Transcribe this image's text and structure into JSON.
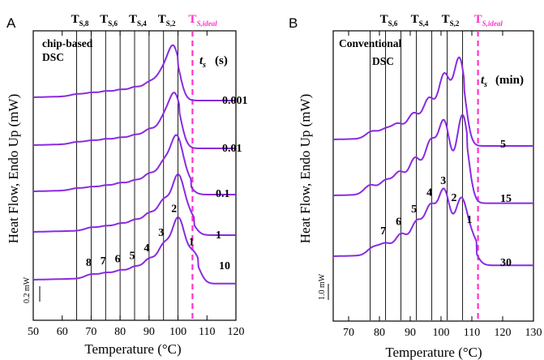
{
  "colors": {
    "curve": "#8a2be2",
    "ideal": "#ff33cc",
    "axis": "#000000",
    "ref_line": "#000000"
  },
  "chart_data": [
    {
      "panel_label": "A",
      "type": "line",
      "box_title": "chip-based\nDSC",
      "xlabel": "Temperature (°C)",
      "ylabel": "Heat Flow, Endo Up (mW)",
      "xlim": [
        50,
        120
      ],
      "x_ticks": [
        50,
        60,
        70,
        80,
        90,
        100,
        110,
        120
      ],
      "x_tick_labels": [
        "50",
        "60",
        "70",
        "80",
        "90",
        "100",
        "110",
        "120"
      ],
      "time_header": "t",
      "time_header_sub": "s",
      "time_unit": "(s)",
      "scale_bar": "0.2 mW",
      "ref_lines": [
        {
          "x": 65,
          "label": "T",
          "sub": "S,8"
        },
        {
          "x": 70,
          "label": "",
          "sub": ""
        },
        {
          "x": 75,
          "label": "T",
          "sub": "S,6"
        },
        {
          "x": 80,
          "label": "",
          "sub": ""
        },
        {
          "x": 85,
          "label": "T",
          "sub": "S,4"
        },
        {
          "x": 90,
          "label": "",
          "sub": ""
        },
        {
          "x": 95,
          "label": "T",
          "sub": "S,2"
        },
        {
          "x": 100,
          "label": "",
          "sub": ""
        }
      ],
      "ideal_line": {
        "x": 105,
        "label": "T",
        "sub": "S,ideal"
      },
      "series": [
        {
          "name": "0.001",
          "baseline_y": 0.0,
          "peaks": [
            [
              65,
              0.02
            ],
            [
              70,
              0.03
            ],
            [
              75,
              0.04
            ],
            [
              80,
              0.05
            ],
            [
              85,
              0.07
            ],
            [
              90,
              0.11
            ],
            [
              94.5,
              0.19
            ],
            [
              98.5,
              0.46
            ]
          ]
        },
        {
          "name": "0.01",
          "baseline_y": 0.0,
          "peaks": [
            [
              65,
              0.02
            ],
            [
              70,
              0.03
            ],
            [
              75,
              0.04
            ],
            [
              80,
              0.05
            ],
            [
              85,
              0.07
            ],
            [
              90,
              0.12
            ],
            [
              95,
              0.21
            ],
            [
              99,
              0.46
            ]
          ]
        },
        {
          "name": "0.1",
          "baseline_y": 0.0,
          "peaks": [
            [
              65,
              0.02
            ],
            [
              70,
              0.03
            ],
            [
              75,
              0.04
            ],
            [
              80,
              0.06
            ],
            [
              85,
              0.08
            ],
            [
              90,
              0.14
            ],
            [
              95,
              0.24
            ],
            [
              99.5,
              0.5
            ],
            [
              103,
              0.07
            ]
          ]
        },
        {
          "name": "1",
          "baseline_y": 0.0,
          "peaks": [
            [
              70,
              0.03
            ],
            [
              75,
              0.04
            ],
            [
              80,
              0.06
            ],
            [
              85,
              0.09
            ],
            [
              90,
              0.15
            ],
            [
              95,
              0.27
            ],
            [
              100,
              0.52
            ],
            [
              104,
              0.12
            ]
          ]
        },
        {
          "name": "10",
          "baseline_y": 0.0,
          "peaks": [
            [
              70,
              0.04
            ],
            [
              75,
              0.05
            ],
            [
              80,
              0.07
            ],
            [
              85,
              0.1
            ],
            [
              90,
              0.17
            ],
            [
              95,
              0.3
            ],
            [
              99.5,
              0.36
            ],
            [
              101,
              0.26
            ],
            [
              105.5,
              0.22
            ]
          ]
        }
      ],
      "peak_labels": [
        {
          "text": "8",
          "x": 70,
          "curve": 4
        },
        {
          "text": "7",
          "x": 75,
          "curve": 4
        },
        {
          "text": "6",
          "x": 80,
          "curve": 4
        },
        {
          "text": "5",
          "x": 85,
          "curve": 4
        },
        {
          "text": "4",
          "x": 90,
          "curve": 4
        },
        {
          "text": "3",
          "x": 95,
          "curve": 4
        },
        {
          "text": "2",
          "x": 99.5,
          "curve": 4
        },
        {
          "text": "1",
          "x": 105.5,
          "curve": 4
        }
      ]
    },
    {
      "panel_label": "B",
      "type": "line",
      "box_title": "Conventional\nDSC",
      "xlabel": "Temperature (°C)",
      "ylabel": "Heat Flow, Endo Up (mW)",
      "xlim": [
        65,
        130
      ],
      "x_ticks": [
        70,
        80,
        90,
        100,
        110,
        120,
        130
      ],
      "x_tick_labels": [
        "70",
        "80",
        "90",
        "100",
        "110",
        "120",
        "130"
      ],
      "time_header": "t",
      "time_header_sub": "s",
      "time_unit": "(min)",
      "scale_bar": "1.0 mW",
      "ref_lines": [
        {
          "x": 77,
          "label": "",
          "sub": ""
        },
        {
          "x": 82,
          "label": "T",
          "sub": "S,6"
        },
        {
          "x": 87,
          "label": "",
          "sub": ""
        },
        {
          "x": 92,
          "label": "T",
          "sub": "S,4"
        },
        {
          "x": 97,
          "label": "",
          "sub": ""
        },
        {
          "x": 102,
          "label": "T",
          "sub": "S,2"
        },
        {
          "x": 107,
          "label": "",
          "sub": ""
        }
      ],
      "ideal_line": {
        "x": 112,
        "label": "T",
        "sub": "S,ideal"
      },
      "series": [
        {
          "name": "5",
          "baseline_y": 0.0,
          "peaks": [
            [
              77.5,
              0.09
            ],
            [
              82,
              0.11
            ],
            [
              86,
              0.17
            ],
            [
              91,
              0.3
            ],
            [
              96,
              0.48
            ],
            [
              101,
              0.78
            ],
            [
              106,
              1.0
            ]
          ]
        },
        {
          "name": "15",
          "baseline_y": 0.0,
          "peaks": [
            [
              77,
              0.12
            ],
            [
              82,
              0.17
            ],
            [
              86.5,
              0.27
            ],
            [
              91.5,
              0.44
            ],
            [
              96.5,
              0.63
            ],
            [
              101,
              0.9
            ],
            [
              107,
              1.0
            ]
          ]
        },
        {
          "name": "30",
          "baseline_y": 0.0,
          "peaks": [
            [
              78,
              0.1
            ],
            [
              82,
              0.14
            ],
            [
              87,
              0.26
            ],
            [
              92,
              0.4
            ],
            [
              96.5,
              0.58
            ],
            [
              101,
              0.8
            ],
            [
              106.5,
              0.68
            ],
            [
              110,
              0.18
            ]
          ]
        }
      ],
      "peak_labels": [
        {
          "text": "7",
          "x": 82,
          "curve": 2
        },
        {
          "text": "6",
          "x": 87,
          "curve": 2
        },
        {
          "text": "5",
          "x": 92,
          "curve": 2
        },
        {
          "text": "4",
          "x": 97,
          "curve": 2
        },
        {
          "text": "3",
          "x": 101.5,
          "curve": 2
        },
        {
          "text": "2",
          "x": 105,
          "curve": 2
        },
        {
          "text": "1",
          "x": 110,
          "curve": 2
        }
      ]
    }
  ]
}
